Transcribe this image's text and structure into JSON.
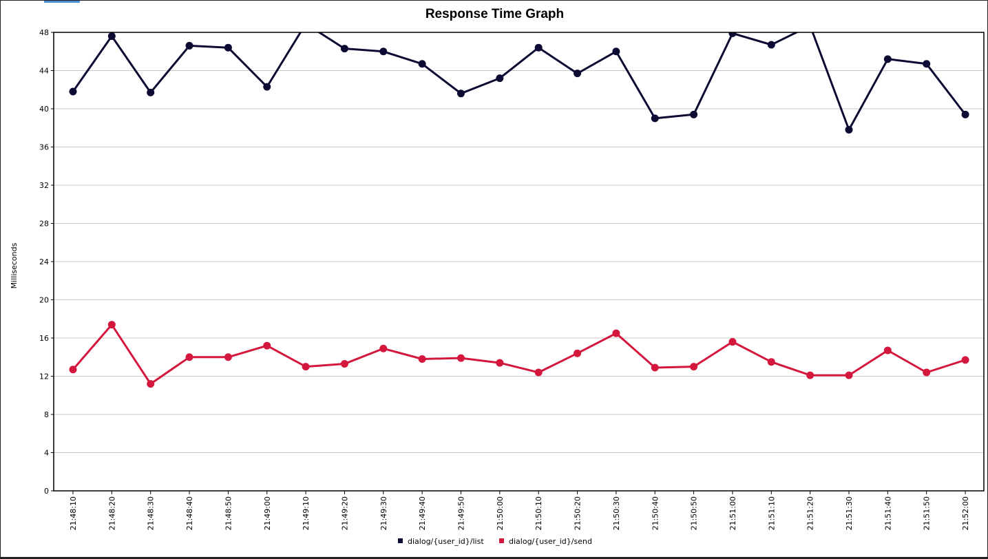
{
  "chart_data": {
    "type": "line",
    "title": "Response Time Graph",
    "xlabel": "",
    "ylabel": "Milliseconds",
    "ylim": [
      0,
      48
    ],
    "yticks": [
      0,
      4,
      8,
      12,
      16,
      20,
      24,
      28,
      32,
      36,
      40,
      44,
      48
    ],
    "grid": "horizontal",
    "legend_position": "bottom-center",
    "x": [
      "21:48:10",
      "21:48:20",
      "21:48:30",
      "21:48:40",
      "21:48:50",
      "21:49:00",
      "21:49:10",
      "21:49:20",
      "21:49:30",
      "21:49:40",
      "21:49:50",
      "21:50:00",
      "21:50:10",
      "21:50:20",
      "21:50:30",
      "21:50:40",
      "21:50:50",
      "21:51:00",
      "21:51:10",
      "21:51:20",
      "21:51:30",
      "21:51:40",
      "21:51:50",
      "21:52:00"
    ],
    "series": [
      {
        "name": "dialog/{user_id}/list",
        "color": "#0b0b33",
        "values": [
          41.8,
          47.6,
          41.7,
          46.6,
          46.4,
          42.3,
          48.9,
          46.3,
          46.0,
          44.7,
          41.6,
          43.2,
          46.4,
          43.7,
          46.0,
          39.0,
          39.4,
          47.9,
          46.7,
          48.7,
          37.8,
          45.2,
          44.7,
          39.4
        ]
      },
      {
        "name": "dialog/{user_id}/send",
        "color": "#d4173d",
        "values": [
          12.7,
          17.4,
          11.2,
          14.0,
          14.0,
          15.2,
          13.0,
          13.3,
          14.9,
          13.8,
          13.9,
          13.4,
          12.4,
          14.4,
          16.5,
          12.9,
          13.0,
          15.6,
          13.5,
          12.1,
          12.1,
          14.7,
          12.4,
          13.7
        ]
      }
    ]
  }
}
